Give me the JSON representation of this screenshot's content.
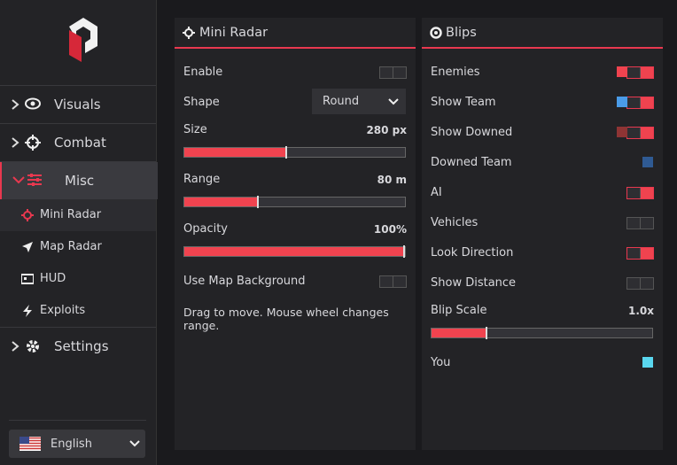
{
  "sidebar": {
    "nav": [
      {
        "label": "Visuals"
      },
      {
        "label": "Combat"
      },
      {
        "label": "Misc",
        "expanded": true,
        "children": [
          {
            "label": "Mini Radar",
            "active": true
          },
          {
            "label": "Map Radar"
          },
          {
            "label": "HUD"
          },
          {
            "label": "Exploits"
          }
        ]
      },
      {
        "label": "Settings"
      }
    ],
    "language": "English"
  },
  "mini_radar": {
    "title": "Mini Radar",
    "enable": {
      "label": "Enable",
      "on": false
    },
    "shape": {
      "label": "Shape",
      "value": "Round"
    },
    "size": {
      "label": "Size",
      "value": "280 px"
    },
    "range": {
      "label": "Range",
      "value": "80 m"
    },
    "opacity": {
      "label": "Opacity",
      "value": "100%"
    },
    "map_background": {
      "label": "Use Map Background",
      "on": false
    },
    "hint": "Drag to move. Mouse wheel changes range."
  },
  "blips": {
    "title": "Blips",
    "rows": [
      {
        "label": "Enemies",
        "color": "#f0434f",
        "on": true
      },
      {
        "label": "Show Team",
        "color": "#4a9be8",
        "on": true
      },
      {
        "label": "Show Downed",
        "color": "#8e3434",
        "on": true
      },
      {
        "label": "Downed Team",
        "color": "#2f5a93"
      },
      {
        "label": "AI",
        "on": true
      },
      {
        "label": "Vehicles",
        "on": false
      },
      {
        "label": "Look Direction",
        "on": true
      },
      {
        "label": "Show Distance",
        "on": false
      }
    ],
    "scale": {
      "label": "Blip Scale",
      "value": "1.0x"
    },
    "you": {
      "label": "You",
      "color": "#5ad7ef"
    }
  }
}
